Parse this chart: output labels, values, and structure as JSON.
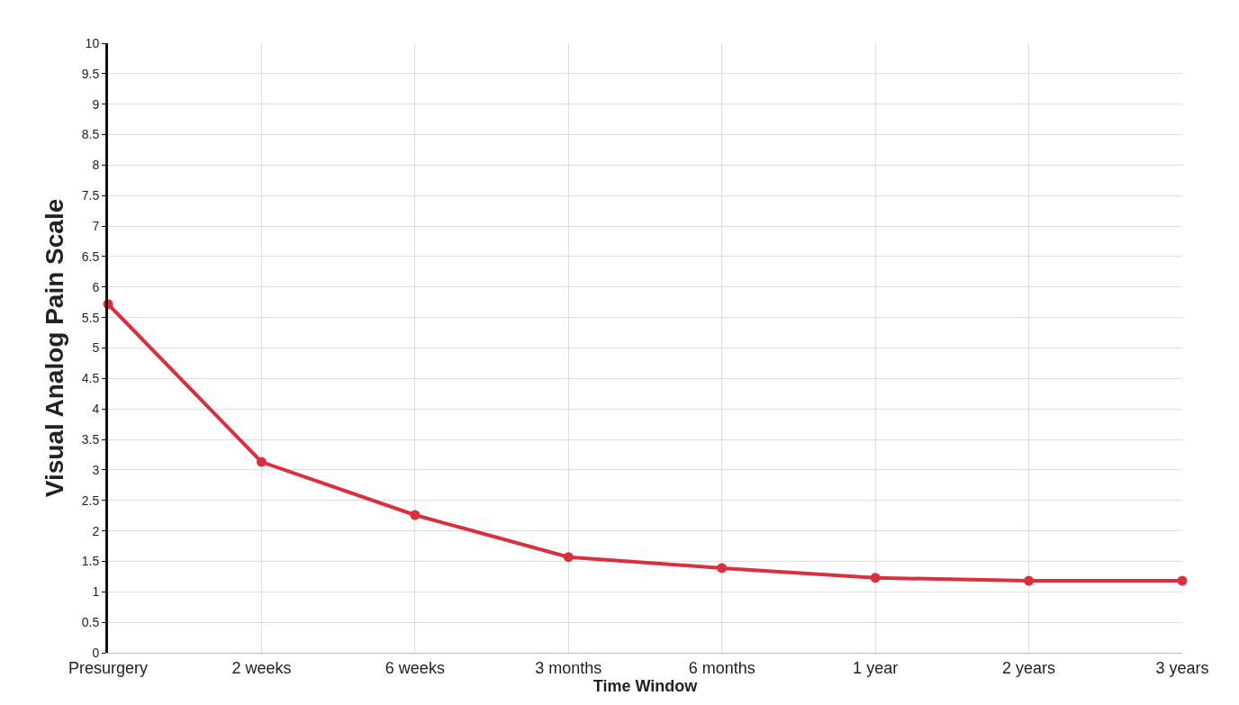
{
  "chart_data": {
    "type": "line",
    "xlabel": "Time Window",
    "ylabel": "Visual Analog Pain Scale",
    "categories": [
      "Presurgery",
      "2 weeks",
      "6 weeks",
      "3 months",
      "6 months",
      "1 year",
      "2 years",
      "3 years"
    ],
    "series": [
      {
        "color": "#d9303f",
        "values": [
          5.72,
          3.13,
          2.26,
          1.57,
          1.39,
          1.23,
          1.18,
          1.18
        ]
      }
    ],
    "ylim": [
      0,
      10
    ],
    "yticks": [
      0,
      0.5,
      1,
      1.5,
      2,
      2.5,
      3,
      3.5,
      4,
      4.5,
      5,
      5.5,
      6,
      6.5,
      7,
      7.5,
      8,
      8.5,
      9,
      9.5,
      10
    ],
    "grid": true,
    "marker": "circle",
    "line_style": "solid"
  }
}
